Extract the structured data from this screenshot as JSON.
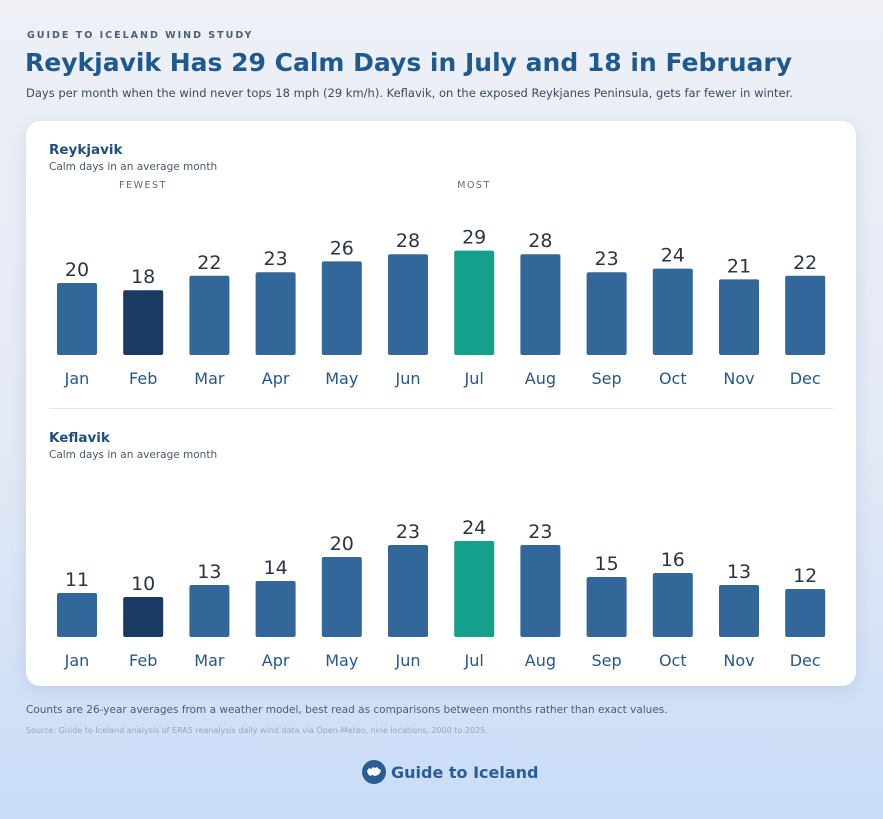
{
  "header": {
    "kicker": "GUIDE TO ICELAND WIND STUDY",
    "title": "Reykjavik Has 29 Calm Days in July and 18 in February",
    "subtitle": "Days per month when the wind never tops 18 mph (29 km/h). Keflavik, on the exposed Reykjanes Peninsula, gets far fewer in winter."
  },
  "colors": {
    "bar": "#336699",
    "lowest": "#1a3a63",
    "highest": "#15a08c"
  },
  "chart_data": [
    {
      "type": "bar",
      "title": "Reykjavik",
      "subtitle": "Calm days in an average month",
      "markers": {
        "fewest": "FEWEST",
        "most": "MOST"
      },
      "categories": [
        "Jan",
        "Feb",
        "Mar",
        "Apr",
        "May",
        "Jun",
        "Jul",
        "Aug",
        "Sep",
        "Oct",
        "Nov",
        "Dec"
      ],
      "values": [
        20,
        18,
        22,
        23,
        26,
        28,
        29,
        28,
        23,
        24,
        21,
        22
      ],
      "highlight_low": "Feb",
      "highlight_high": "Jul",
      "grid": false
    },
    {
      "type": "bar",
      "title": "Keflavik",
      "subtitle": "Calm days in an average month",
      "categories": [
        "Jan",
        "Feb",
        "Mar",
        "Apr",
        "May",
        "Jun",
        "Jul",
        "Aug",
        "Sep",
        "Oct",
        "Nov",
        "Dec"
      ],
      "values": [
        11,
        10,
        13,
        14,
        20,
        23,
        24,
        23,
        15,
        16,
        13,
        12
      ],
      "highlight_low": "Feb",
      "highlight_high": "Jul",
      "grid": false
    }
  ],
  "footer": {
    "note": "Counts are 26-year averages from a weather model, best read as comparisons between months rather than exact values.",
    "source": "Source: Guide to Iceland analysis of ERA5 reanalysis daily wind data via Open-Meteo, nine locations, 2000 to 2025.",
    "brand": "Guide to Iceland",
    "brand_icon": "iceland-map-icon"
  }
}
